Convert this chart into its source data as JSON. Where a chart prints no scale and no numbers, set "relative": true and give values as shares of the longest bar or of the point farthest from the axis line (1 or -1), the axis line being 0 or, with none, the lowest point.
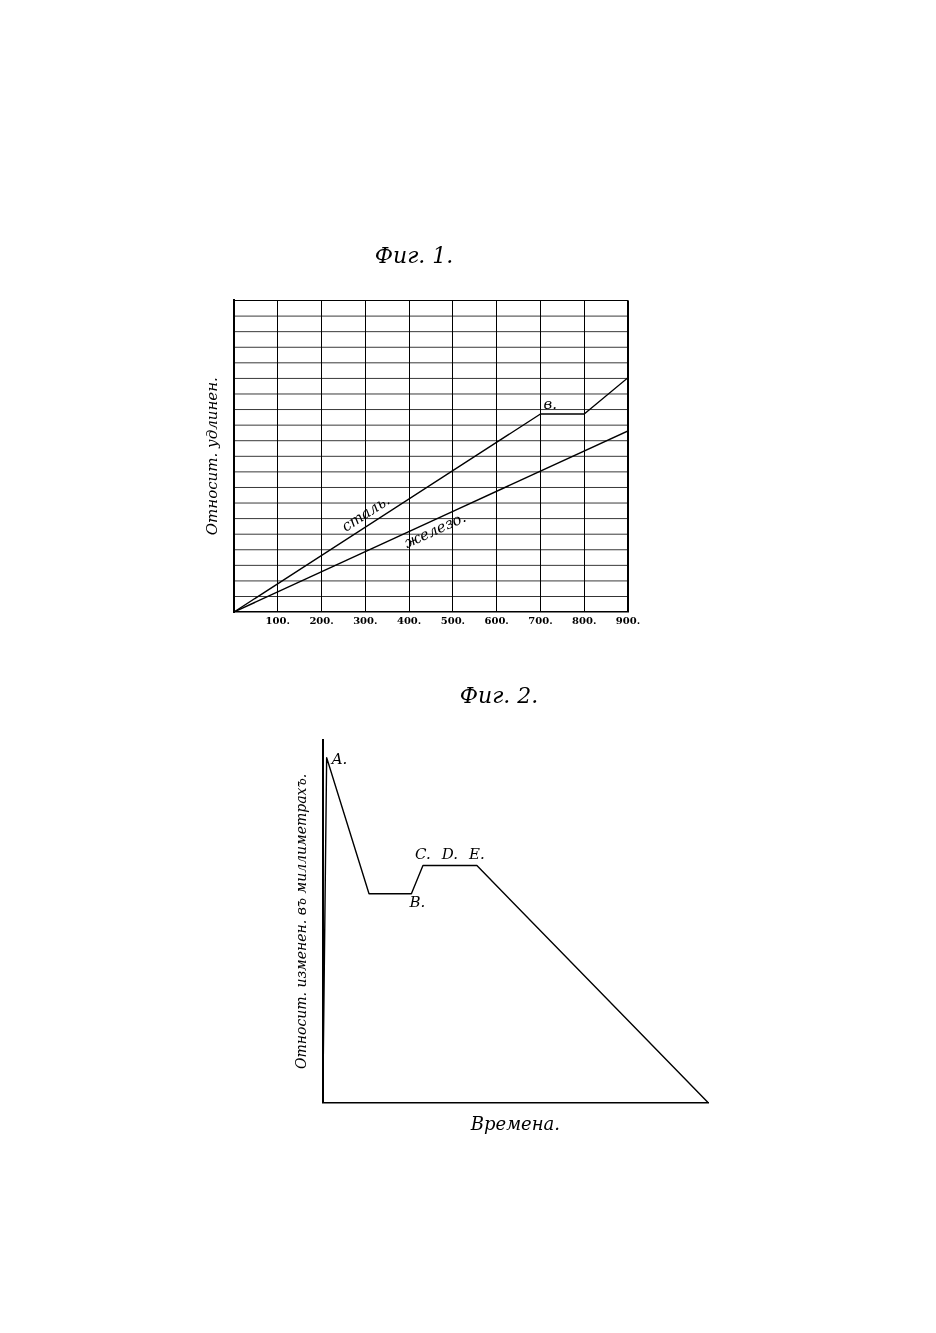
{
  "chart_data": [
    {
      "type": "line",
      "title": "Фиг. 1.",
      "ylabel": "Относит. удлинен.",
      "relative": true,
      "grid": "x",
      "tick_labels": "x",
      "xlim": [
        0,
        900
      ],
      "xticks": [
        {
          "value": 100,
          "label": "100."
        },
        {
          "value": 200,
          "label": "200."
        },
        {
          "value": 300,
          "label": "300."
        },
        {
          "value": 400,
          "label": "400."
        },
        {
          "value": 500,
          "label": "500."
        },
        {
          "value": 600,
          "label": "600."
        },
        {
          "value": 700,
          "label": "700."
        },
        {
          "value": 800,
          "label": "800."
        },
        {
          "value": 900,
          "label": "900."
        }
      ],
      "series": [
        {
          "name": "сталь.",
          "color": "#000000",
          "x": [
            0,
            700,
            800,
            900
          ],
          "values": [
            0,
            0.845,
            0.845,
            1
          ]
        },
        {
          "name": "железо.",
          "color": "#000000",
          "x": [
            0,
            900
          ],
          "values": [
            0,
            0.773
          ]
        }
      ],
      "annotations": [
        {
          "text": "в.",
          "x": 700,
          "y": 0.845
        }
      ]
    },
    {
      "type": "line",
      "title": "Фиг. 2.",
      "xlabel": "Времена.",
      "ylabel": "Относит. изменен. въ миллиметрахъ.",
      "relative": true,
      "tick_labels": false,
      "categories": [
        null,
        null,
        null,
        null,
        null,
        null,
        null,
        null,
        null,
        null,
        null,
        null,
        null,
        null,
        null,
        null,
        null,
        null,
        null,
        null,
        null,
        null,
        null,
        null,
        null,
        null,
        null,
        null,
        null,
        null,
        null,
        null,
        null,
        null,
        null,
        null,
        null,
        null,
        null,
        null,
        null,
        null,
        null,
        null,
        null,
        null,
        null,
        null,
        null,
        null,
        null,
        null,
        null,
        null,
        null,
        null,
        null,
        null,
        null,
        null,
        null,
        null,
        null,
        null,
        null,
        null,
        null,
        null,
        null,
        null,
        null,
        null,
        null,
        null,
        null,
        null,
        null,
        null,
        null,
        null,
        null,
        null,
        null,
        null,
        null,
        null,
        null,
        null,
        null,
        null,
        null,
        null,
        null,
        null,
        null,
        null,
        null,
        null,
        null,
        null,
        null
      ],
      "series": [
        {
          "color": "#000000",
          "values": [
            0,
            1,
            null,
            null,
            null,
            null,
            null,
            null,
            null,
            null,
            null,
            null,
            0.605,
            null,
            null,
            null,
            null,
            null,
            null,
            null,
            null,
            null,
            null,
            0.605,
            null,
            null,
            0.687,
            null,
            null,
            null,
            null,
            null,
            null,
            null,
            null,
            null,
            null,
            null,
            null,
            null,
            0.687,
            null,
            null,
            null,
            null,
            null,
            null,
            null,
            null,
            null,
            null,
            null,
            null,
            null,
            null,
            null,
            null,
            null,
            null,
            null,
            null,
            null,
            null,
            null,
            null,
            null,
            null,
            null,
            null,
            null,
            null,
            null,
            null,
            null,
            null,
            null,
            null,
            null,
            null,
            null,
            null,
            null,
            null,
            null,
            null,
            null,
            null,
            null,
            null,
            null,
            null,
            null,
            null,
            null,
            null,
            null,
            null,
            null,
            null,
            null,
            0
          ]
        }
      ],
      "annotations": [
        "A.",
        {
          "text": "B.",
          "y": 0.605
        },
        {
          "text": "C.",
          "y": 0.687
        },
        {
          "text": "D.",
          "y": 0.687
        },
        {
          "text": "E.",
          "y": 0.687
        }
      ]
    }
  ]
}
